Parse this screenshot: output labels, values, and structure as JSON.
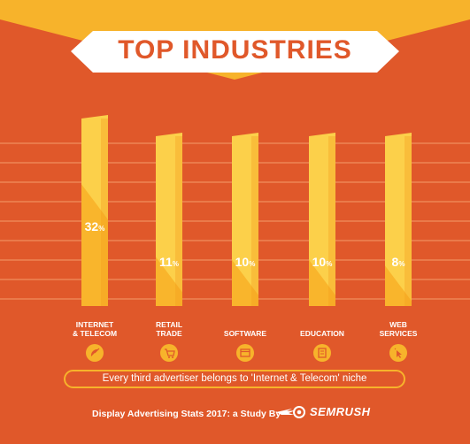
{
  "header": {
    "title": "TOP INDUSTRIES"
  },
  "chart_data": {
    "type": "bar",
    "categories": [
      {
        "line1": "INTERNET",
        "line2": "& TELECOM",
        "icon": "satellite-dish-icon"
      },
      {
        "line1": "RETAIL",
        "line2": "TRADE",
        "icon": "shopping-cart-icon"
      },
      {
        "line1": "",
        "line2": "SOFTWARE",
        "icon": "browser-window-icon"
      },
      {
        "line1": "",
        "line2": "EDUCATION",
        "icon": "book-icon"
      },
      {
        "line1": "WEB",
        "line2": "SERVICES",
        "icon": "cursor-click-icon"
      }
    ],
    "values": [
      32,
      11,
      10,
      10,
      8
    ],
    "value_labels": [
      {
        "num": "32",
        "unit": "%"
      },
      {
        "num": "11",
        "unit": "%"
      },
      {
        "num": "10",
        "unit": "%"
      },
      {
        "num": "10",
        "unit": "%"
      },
      {
        "num": "8",
        "unit": "%"
      }
    ],
    "grid": true
  },
  "note": "Every third advertiser belongs to 'Internet & Telecom' niche",
  "footer": {
    "text": "Display Advertising Stats 2017: a Study By",
    "brand": "SEMRUSH"
  },
  "colors": {
    "background": "#e0582a",
    "header_band": "#f7b32b",
    "bar_light": "#fcd04a",
    "bar_mid": "#f9b52c",
    "bar_dark": "#f39c1e",
    "grid": "#ea7a4a",
    "banner": "#ffffff"
  }
}
